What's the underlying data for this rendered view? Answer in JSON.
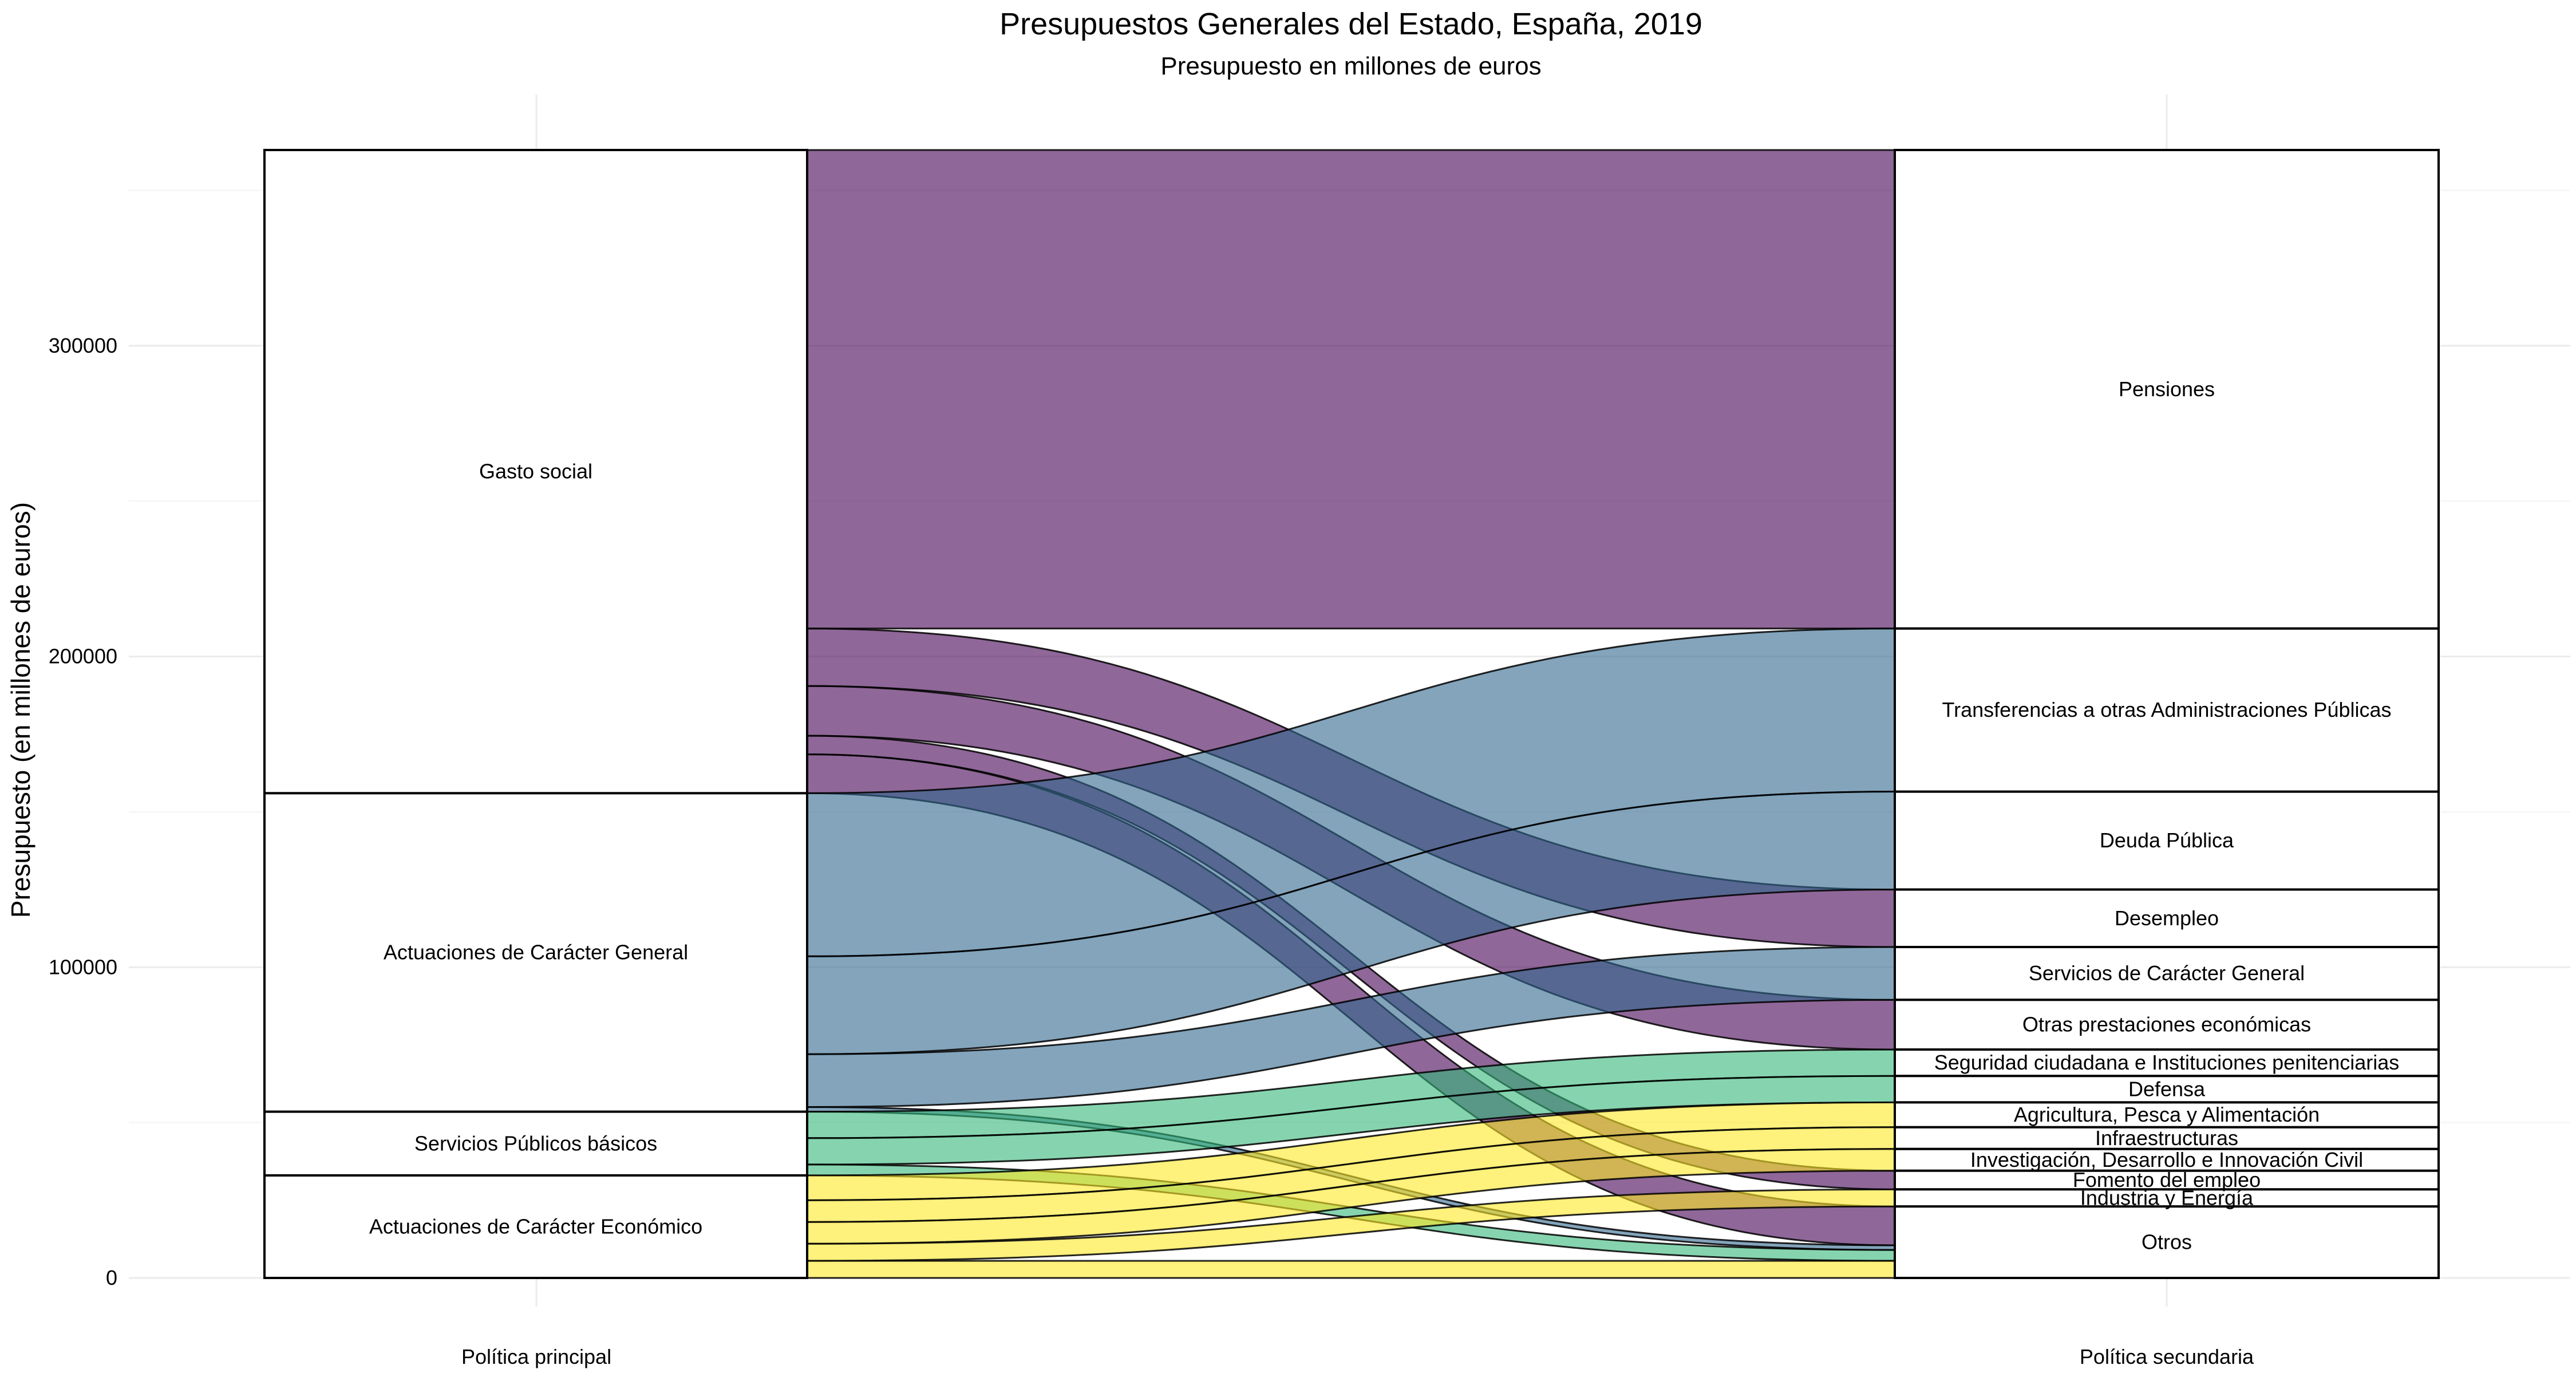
{
  "chart_data": {
    "type": "alluvial",
    "title": "Presupuestos Generales del Estado, España, 2019",
    "subtitle": "Presupuesto en millones de euros",
    "ylabel": "Presupuesto (en millones de euros)",
    "ylim": [
      0,
      363000
    ],
    "yticks": [
      0,
      100000,
      200000,
      300000
    ],
    "ytick_labels": [
      "0",
      "100000",
      "200000",
      "300000"
    ],
    "axes": [
      {
        "label": "Política principal",
        "strata": [
          {
            "name": "Gasto social",
            "label": "Gasto social",
            "value": 207000
          },
          {
            "name": "Actuaciones de Carácter General",
            "label": "Actuaciones de Carácter General",
            "value": 102500
          },
          {
            "name": "Servicios Públicos básicos",
            "label": "Servicios Públicos básicos",
            "value": 20500
          },
          {
            "name": "Actuaciones de Carácter Económico",
            "label": "Actuaciones de Carácter Económico",
            "value": 33000
          }
        ]
      },
      {
        "label": "Política secundaria",
        "strata": [
          {
            "name": "Pensiones",
            "label": "Pensiones",
            "value": 154000
          },
          {
            "name": "Transferencias a otras Administraciones Públicas",
            "label": "Transferencias a otras Administraciones Públicas",
            "value": 52500
          },
          {
            "name": "Deuda Pública",
            "label": "Deuda Pública",
            "value": 31500
          },
          {
            "name": "Desempleo",
            "label": "Desempleo",
            "value": 18500
          },
          {
            "name": "Servicios de Carácter General",
            "label": "Servicios de Carácter General",
            "value": 17000
          },
          {
            "name": "Otras prestaciones económicas",
            "label": "Otras prestaciones económicas",
            "value": 16000
          },
          {
            "name": "Seguridad ciudadana e Instituciones penitenciarias",
            "label": "Seguridad ciudadana e Instituciones penitenciarias",
            "value": 8500
          },
          {
            "name": "Defensa",
            "label": "Defensa",
            "value": 8500
          },
          {
            "name": "Agricultura, Pesca y Alimentación",
            "label": "Agricultura, Pesca y Alimentación",
            "value": 8000
          },
          {
            "name": "Infraestructuras",
            "label": "Infraestructuras",
            "value": 7000
          },
          {
            "name": "Investigación, Desarrollo e Innovación Civil",
            "label": "Investigación, Desarrollo e Innovación Civil",
            "value": 7000
          },
          {
            "name": "Fomento del empleo",
            "label": "Fomento del empleo",
            "value": 6000
          },
          {
            "name": "Industria y Energía",
            "label": "Industria y Energía",
            "value": 5500
          },
          {
            "name": "Otros",
            "label": "Otros",
            "value": 23000
          }
        ]
      }
    ],
    "flows": [
      {
        "from": "Gasto social",
        "to": "Pensiones",
        "value": 154000,
        "color": "#440154"
      },
      {
        "from": "Gasto social",
        "to": "Desempleo",
        "value": 18500,
        "color": "#440154"
      },
      {
        "from": "Gasto social",
        "to": "Otras prestaciones económicas",
        "value": 16000,
        "color": "#440154"
      },
      {
        "from": "Gasto social",
        "to": "Fomento del empleo",
        "value": 6000,
        "color": "#440154"
      },
      {
        "from": "Gasto social",
        "to": "Otros",
        "value": 12500,
        "color": "#440154"
      },
      {
        "from": "Actuaciones de Carácter General",
        "to": "Transferencias a otras Administraciones Públicas",
        "value": 52500,
        "color": "#31688e"
      },
      {
        "from": "Actuaciones de Carácter General",
        "to": "Deuda Pública",
        "value": 31500,
        "color": "#31688e"
      },
      {
        "from": "Actuaciones de Carácter General",
        "to": "Servicios de Carácter General",
        "value": 17000,
        "color": "#31688e"
      },
      {
        "from": "Actuaciones de Carácter General",
        "to": "Otros",
        "value": 1500,
        "color": "#31688e"
      },
      {
        "from": "Servicios Públicos básicos",
        "to": "Seguridad ciudadana e Instituciones penitenciarias",
        "value": 8500,
        "color": "#35b779"
      },
      {
        "from": "Servicios Públicos básicos",
        "to": "Defensa",
        "value": 8500,
        "color": "#35b779"
      },
      {
        "from": "Servicios Públicos básicos",
        "to": "Otros",
        "value": 3500,
        "color": "#35b779"
      },
      {
        "from": "Actuaciones de Carácter Económico",
        "to": "Agricultura, Pesca y Alimentación",
        "value": 8000,
        "color": "#fde725"
      },
      {
        "from": "Actuaciones de Carácter Económico",
        "to": "Infraestructuras",
        "value": 7000,
        "color": "#fde725"
      },
      {
        "from": "Actuaciones de Carácter Económico",
        "to": "Investigación, Desarrollo e Innovación Civil",
        "value": 7000,
        "color": "#fde725"
      },
      {
        "from": "Actuaciones de Carácter Económico",
        "to": "Industria y Energía",
        "value": 5500,
        "color": "#fde725"
      },
      {
        "from": "Actuaciones de Carácter Económico",
        "to": "Otros",
        "value": 5500,
        "color": "#fde725"
      }
    ],
    "grid": true,
    "legend": "none"
  }
}
